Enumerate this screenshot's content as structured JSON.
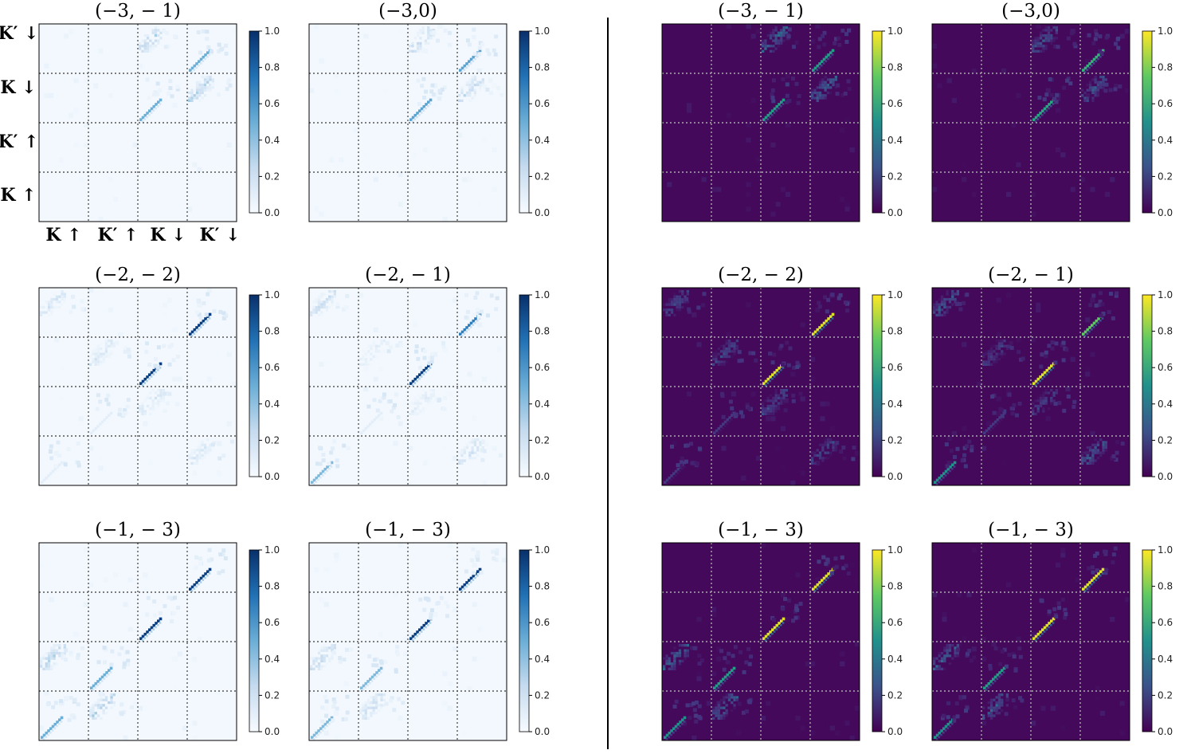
{
  "chart_data": {
    "type": "heatmap",
    "block_labels": {
      "rows": [
        "K′ ↓",
        "K ↓",
        "K′ ↑",
        "K ↑"
      ],
      "cols": [
        "K ↑",
        "K′ ↑",
        "K ↓",
        "K′ ↓"
      ]
    },
    "colorbar": {
      "range": [
        0.0,
        1.0
      ],
      "ticks": [
        "0.0",
        "0.2",
        "0.4",
        "0.6",
        "0.8",
        "1.0"
      ]
    },
    "colormaps": {
      "left_group": "Blues",
      "right_group": "viridis"
    },
    "panels": [
      {
        "title": "(−3, − 1)",
        "group": "left",
        "blocks": [
          {
            "r": 0,
            "c": 2,
            "kind": "cluster",
            "v": 0.35
          },
          {
            "r": 0,
            "c": 3,
            "kind": "diag",
            "v": 0.5
          },
          {
            "r": 1,
            "c": 2,
            "kind": "diag",
            "v": 0.5
          },
          {
            "r": 1,
            "c": 3,
            "kind": "cluster",
            "v": 0.35
          }
        ]
      },
      {
        "title": "(−3,0)",
        "group": "left",
        "blocks": [
          {
            "r": 0,
            "c": 2,
            "kind": "cluster",
            "v": 0.3
          },
          {
            "r": 0,
            "c": 3,
            "kind": "diag",
            "v": 0.55
          },
          {
            "r": 1,
            "c": 2,
            "kind": "diag",
            "v": 0.55
          },
          {
            "r": 1,
            "c": 3,
            "kind": "cluster",
            "v": 0.3
          }
        ]
      },
      {
        "title": "(−2, − 2)",
        "group": "left",
        "blocks": [
          {
            "r": 0,
            "c": 0,
            "kind": "cluster",
            "v": 0.2
          },
          {
            "r": 0,
            "c": 3,
            "kind": "diag",
            "v": 0.95
          },
          {
            "r": 1,
            "c": 1,
            "kind": "cluster",
            "v": 0.2
          },
          {
            "r": 1,
            "c": 2,
            "kind": "diag",
            "v": 0.95
          },
          {
            "r": 2,
            "c": 1,
            "kind": "diag",
            "v": 0.1
          },
          {
            "r": 2,
            "c": 2,
            "kind": "cluster",
            "v": 0.2
          },
          {
            "r": 3,
            "c": 0,
            "kind": "diag",
            "v": 0.1
          },
          {
            "r": 3,
            "c": 3,
            "kind": "cluster",
            "v": 0.2
          }
        ]
      },
      {
        "title": "(−2, − 1)",
        "group": "left",
        "blocks": [
          {
            "r": 0,
            "c": 0,
            "kind": "cluster",
            "v": 0.25
          },
          {
            "r": 0,
            "c": 3,
            "kind": "diag",
            "v": 0.7
          },
          {
            "r": 1,
            "c": 1,
            "kind": "cluster",
            "v": 0.15
          },
          {
            "r": 1,
            "c": 2,
            "kind": "diag",
            "v": 0.95
          },
          {
            "r": 2,
            "c": 1,
            "kind": "diag",
            "v": 0.1
          },
          {
            "r": 2,
            "c": 2,
            "kind": "cluster",
            "v": 0.15
          },
          {
            "r": 3,
            "c": 0,
            "kind": "diag",
            "v": 0.45
          },
          {
            "r": 3,
            "c": 3,
            "kind": "cluster",
            "v": 0.3
          }
        ]
      },
      {
        "title": "(−1, − 3)",
        "group": "left",
        "blocks": [
          {
            "r": 0,
            "c": 3,
            "kind": "diag",
            "v": 0.95
          },
          {
            "r": 1,
            "c": 2,
            "kind": "diag",
            "v": 0.95
          },
          {
            "r": 2,
            "c": 0,
            "kind": "cluster",
            "v": 0.35
          },
          {
            "r": 2,
            "c": 1,
            "kind": "diag",
            "v": 0.5
          },
          {
            "r": 3,
            "c": 0,
            "kind": "diag",
            "v": 0.5
          },
          {
            "r": 3,
            "c": 1,
            "kind": "cluster",
            "v": 0.35
          }
        ]
      },
      {
        "title": "(−1, − 3)",
        "group": "left",
        "blocks": [
          {
            "r": 0,
            "c": 3,
            "kind": "diag",
            "v": 0.95
          },
          {
            "r": 1,
            "c": 2,
            "kind": "diag",
            "v": 0.95
          },
          {
            "r": 2,
            "c": 0,
            "kind": "cluster",
            "v": 0.3
          },
          {
            "r": 2,
            "c": 1,
            "kind": "diag",
            "v": 0.45
          },
          {
            "r": 3,
            "c": 0,
            "kind": "diag",
            "v": 0.45
          },
          {
            "r": 3,
            "c": 1,
            "kind": "cluster",
            "v": 0.3
          }
        ]
      },
      {
        "title": "(−3, − 1)",
        "group": "right",
        "blocks": [
          {
            "r": 0,
            "c": 2,
            "kind": "cluster",
            "v": 0.35
          },
          {
            "r": 0,
            "c": 3,
            "kind": "diag",
            "v": 0.55
          },
          {
            "r": 1,
            "c": 2,
            "kind": "diag",
            "v": 0.55
          },
          {
            "r": 1,
            "c": 3,
            "kind": "cluster",
            "v": 0.35
          }
        ]
      },
      {
        "title": "(−3,0)",
        "group": "right",
        "blocks": [
          {
            "r": 0,
            "c": 2,
            "kind": "cluster",
            "v": 0.3
          },
          {
            "r": 0,
            "c": 3,
            "kind": "diag",
            "v": 0.65
          },
          {
            "r": 1,
            "c": 2,
            "kind": "diag",
            "v": 0.6
          },
          {
            "r": 1,
            "c": 3,
            "kind": "cluster",
            "v": 0.3
          }
        ]
      },
      {
        "title": "(−2, − 2)",
        "group": "right",
        "blocks": [
          {
            "r": 0,
            "c": 0,
            "kind": "cluster",
            "v": 0.25
          },
          {
            "r": 0,
            "c": 3,
            "kind": "diag",
            "v": 0.95
          },
          {
            "r": 1,
            "c": 1,
            "kind": "cluster",
            "v": 0.25
          },
          {
            "r": 1,
            "c": 2,
            "kind": "diag",
            "v": 0.95
          },
          {
            "r": 2,
            "c": 1,
            "kind": "diag",
            "v": 0.15
          },
          {
            "r": 2,
            "c": 2,
            "kind": "cluster",
            "v": 0.25
          },
          {
            "r": 3,
            "c": 0,
            "kind": "diag",
            "v": 0.15
          },
          {
            "r": 3,
            "c": 3,
            "kind": "cluster",
            "v": 0.25
          }
        ]
      },
      {
        "title": "(−2, − 1)",
        "group": "right",
        "blocks": [
          {
            "r": 0,
            "c": 0,
            "kind": "cluster",
            "v": 0.3
          },
          {
            "r": 0,
            "c": 3,
            "kind": "diag",
            "v": 0.75
          },
          {
            "r": 1,
            "c": 1,
            "kind": "cluster",
            "v": 0.2
          },
          {
            "r": 1,
            "c": 2,
            "kind": "diag",
            "v": 0.95
          },
          {
            "r": 2,
            "c": 1,
            "kind": "diag",
            "v": 0.15
          },
          {
            "r": 2,
            "c": 2,
            "kind": "cluster",
            "v": 0.2
          },
          {
            "r": 3,
            "c": 0,
            "kind": "diag",
            "v": 0.5
          },
          {
            "r": 3,
            "c": 3,
            "kind": "cluster",
            "v": 0.35
          }
        ]
      },
      {
        "title": "(−1, − 3)",
        "group": "right",
        "blocks": [
          {
            "r": 0,
            "c": 3,
            "kind": "diag",
            "v": 0.95
          },
          {
            "r": 1,
            "c": 2,
            "kind": "diag",
            "v": 0.95
          },
          {
            "r": 2,
            "c": 0,
            "kind": "cluster",
            "v": 0.35
          },
          {
            "r": 2,
            "c": 1,
            "kind": "diag",
            "v": 0.55
          },
          {
            "r": 3,
            "c": 0,
            "kind": "diag",
            "v": 0.5
          },
          {
            "r": 3,
            "c": 1,
            "kind": "cluster",
            "v": 0.35
          }
        ]
      },
      {
        "title": "(−1, − 3)",
        "group": "right",
        "blocks": [
          {
            "r": 0,
            "c": 3,
            "kind": "diag",
            "v": 0.95
          },
          {
            "r": 1,
            "c": 2,
            "kind": "diag",
            "v": 0.95
          },
          {
            "r": 2,
            "c": 0,
            "kind": "cluster",
            "v": 0.35
          },
          {
            "r": 2,
            "c": 1,
            "kind": "diag",
            "v": 0.55
          },
          {
            "r": 3,
            "c": 0,
            "kind": "diag",
            "v": 0.5
          },
          {
            "r": 3,
            "c": 1,
            "kind": "cluster",
            "v": 0.35
          }
        ]
      }
    ]
  }
}
